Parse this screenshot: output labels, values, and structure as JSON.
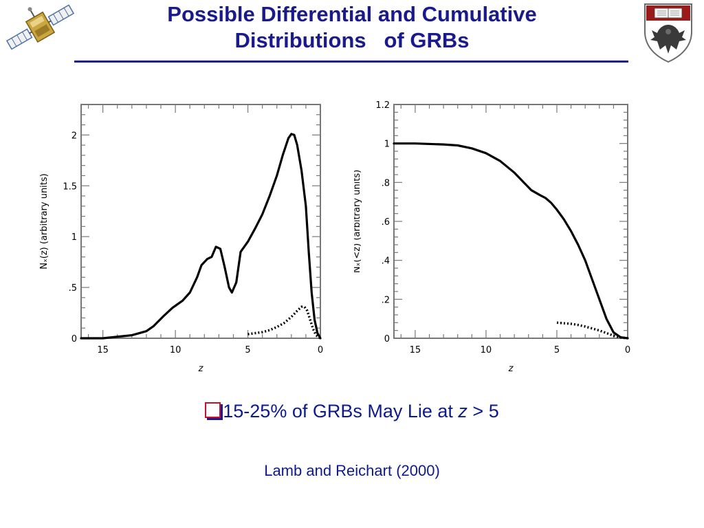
{
  "slide": {
    "title_line1": "Possible Differential and Cumulative",
    "title_line2": "Distributions   of GRBs",
    "bullet_text_before": "15-25% of GRBs May Lie at ",
    "bullet_z": "z",
    "bullet_text_after": " > 5",
    "citation": "Lamb and Reichart (2000)",
    "title_color": "#1a1a8c",
    "text_color": "#0d1a8c",
    "bullet_box_color": "#c8102e"
  },
  "logos": {
    "left": "satellite-logo",
    "right": "university-crest-logo"
  },
  "chart_data": [
    {
      "type": "line",
      "title": "",
      "xlabel": "z",
      "ylabel": "Nₓ(z)  (arbitrary  units)",
      "xlim": [
        16.5,
        0
      ],
      "ylim": [
        0,
        2.3
      ],
      "x_ticks": [
        15,
        10,
        5,
        0
      ],
      "x_tick_labels": [
        "15",
        "10",
        "5",
        "0"
      ],
      "y_ticks": [
        0,
        0.5,
        1,
        1.5,
        2
      ],
      "y_tick_labels": [
        "0",
        ".5",
        "1",
        "1.5",
        "2"
      ],
      "grid": false,
      "series": [
        {
          "style": "solid",
          "points": [
            [
              16.5,
              0
            ],
            [
              15,
              0
            ],
            [
              13,
              0.03
            ],
            [
              12,
              0.07
            ],
            [
              11.5,
              0.12
            ],
            [
              10.8,
              0.22
            ],
            [
              10.2,
              0.3
            ],
            [
              9.5,
              0.37
            ],
            [
              9,
              0.45
            ],
            [
              8.5,
              0.6
            ],
            [
              8.2,
              0.72
            ],
            [
              7.8,
              0.78
            ],
            [
              7.5,
              0.8
            ],
            [
              7.2,
              0.9
            ],
            [
              6.9,
              0.88
            ],
            [
              6.6,
              0.7
            ],
            [
              6.3,
              0.5
            ],
            [
              6.1,
              0.45
            ],
            [
              5.8,
              0.55
            ],
            [
              5.5,
              0.85
            ],
            [
              5,
              0.95
            ],
            [
              4.5,
              1.08
            ],
            [
              4,
              1.22
            ],
            [
              3.5,
              1.4
            ],
            [
              3,
              1.6
            ],
            [
              2.6,
              1.8
            ],
            [
              2.2,
              1.97
            ],
            [
              2,
              2.01
            ],
            [
              1.8,
              2.0
            ],
            [
              1.6,
              1.9
            ],
            [
              1.3,
              1.65
            ],
            [
              1,
              1.3
            ],
            [
              0.8,
              0.85
            ],
            [
              0.6,
              0.45
            ],
            [
              0.4,
              0.18
            ],
            [
              0.2,
              0.05
            ],
            [
              0,
              0
            ]
          ]
        },
        {
          "style": "dotted",
          "points": [
            [
              5,
              0.04
            ],
            [
              4.5,
              0.05
            ],
            [
              4,
              0.06
            ],
            [
              3.5,
              0.08
            ],
            [
              3,
              0.11
            ],
            [
              2.5,
              0.15
            ],
            [
              2,
              0.21
            ],
            [
              1.6,
              0.27
            ],
            [
              1.3,
              0.31
            ],
            [
              1.1,
              0.31
            ],
            [
              0.9,
              0.27
            ],
            [
              0.7,
              0.18
            ],
            [
              0.5,
              0.09
            ],
            [
              0.3,
              0.03
            ],
            [
              0,
              0
            ]
          ]
        }
      ]
    },
    {
      "type": "line",
      "title": "",
      "xlabel": "z",
      "ylabel": "Nₓ(<z)  (arbitrary  units)",
      "xlim": [
        16.5,
        0
      ],
      "ylim": [
        0,
        1.2
      ],
      "x_ticks": [
        15,
        10,
        5,
        0
      ],
      "x_tick_labels": [
        "15",
        "10",
        "5",
        "0"
      ],
      "y_ticks": [
        0,
        0.2,
        0.4,
        0.6,
        0.8,
        1,
        1.2
      ],
      "y_tick_labels": [
        "0",
        ".2",
        ".4",
        ".6",
        ".8",
        "1",
        "1.2"
      ],
      "grid": false,
      "series": [
        {
          "style": "solid",
          "points": [
            [
              16.5,
              1.0
            ],
            [
              15,
              1.0
            ],
            [
              13,
              0.995
            ],
            [
              12,
              0.99
            ],
            [
              11,
              0.975
            ],
            [
              10,
              0.95
            ],
            [
              9,
              0.91
            ],
            [
              8,
              0.85
            ],
            [
              7.2,
              0.79
            ],
            [
              6.8,
              0.76
            ],
            [
              6.2,
              0.735
            ],
            [
              5.8,
              0.72
            ],
            [
              5.4,
              0.695
            ],
            [
              5,
              0.66
            ],
            [
              4.5,
              0.61
            ],
            [
              4,
              0.55
            ],
            [
              3.5,
              0.48
            ],
            [
              3,
              0.4
            ],
            [
              2.5,
              0.3
            ],
            [
              2,
              0.2
            ],
            [
              1.5,
              0.1
            ],
            [
              1,
              0.03
            ],
            [
              0.5,
              0.005
            ],
            [
              0,
              0
            ]
          ]
        },
        {
          "style": "dotted",
          "points": [
            [
              5,
              0.08
            ],
            [
              4.5,
              0.077
            ],
            [
              4,
              0.074
            ],
            [
              3.5,
              0.068
            ],
            [
              3,
              0.06
            ],
            [
              2.5,
              0.05
            ],
            [
              2,
              0.04
            ],
            [
              1.5,
              0.027
            ],
            [
              1,
              0.013
            ],
            [
              0.5,
              0.004
            ],
            [
              0,
              0
            ]
          ]
        }
      ]
    }
  ]
}
